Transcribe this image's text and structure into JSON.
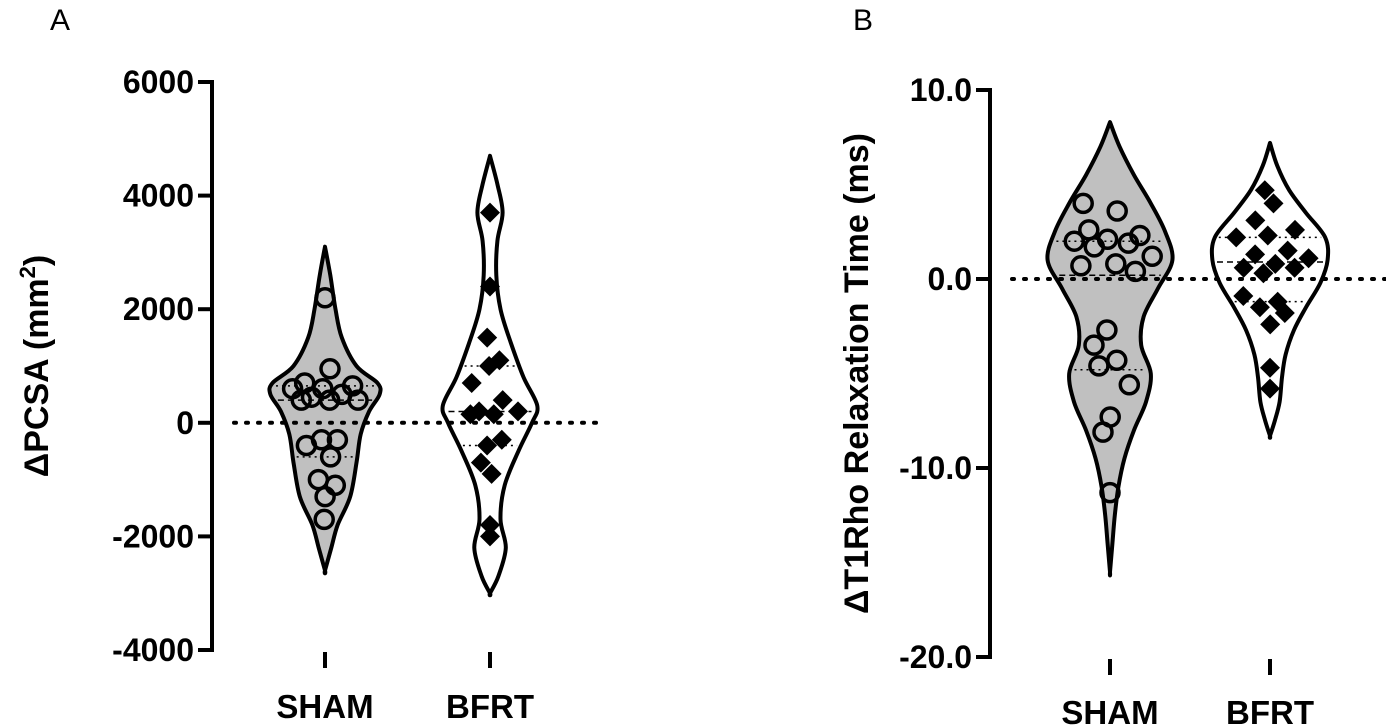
{
  "chart_data": [
    {
      "type": "violin",
      "panel_label": "A",
      "ylabel": "ΔPCSA (mm",
      "ylabel_sup": "2",
      "ylabel_close": ")",
      "ylim": [
        -4000,
        6000
      ],
      "yticks": [
        -4000,
        -2000,
        0,
        2000,
        4000,
        6000
      ],
      "ytick_labels": [
        "-4000",
        "-2000",
        "0",
        "2000",
        "4000",
        "6000"
      ],
      "reference_line": 0,
      "categories": [
        "SHAM",
        "BFRT"
      ],
      "series": [
        {
          "name": "SHAM",
          "marker": "open-circle",
          "fill": "#c0c0c0",
          "values": [
            2200,
            950,
            700,
            650,
            600,
            600,
            500,
            450,
            400,
            400,
            400,
            -300,
            -300,
            -400,
            -600,
            -1000,
            -1100,
            -1300,
            -1700
          ],
          "quartiles": [
            -600,
            400,
            650
          ],
          "violin": {
            "y": [
              3100,
              2600,
              2000,
              1500,
              1000,
              700,
              500,
              200,
              -200,
              -700,
              -1300,
              -1800,
              -2200,
              -2600
            ],
            "w": [
              0,
              0.05,
              0.1,
              0.16,
              0.3,
              0.5,
              0.52,
              0.42,
              0.34,
              0.3,
              0.24,
              0.12,
              0.06,
              0
            ]
          }
        },
        {
          "name": "BFRT",
          "marker": "filled-diamond",
          "fill": "#ffffff",
          "values": [
            3700,
            2400,
            1500,
            1100,
            1000,
            700,
            400,
            200,
            200,
            150,
            150,
            -300,
            -400,
            -700,
            -900,
            -1800,
            -2000
          ],
          "quartiles": [
            -400,
            200,
            1000
          ],
          "violin": {
            "y": [
              4700,
              4200,
              3700,
              3200,
              2600,
              2000,
              1400,
              800,
              300,
              0,
              -500,
              -1100,
              -1700,
              -2200,
              -2700,
              -3000
            ],
            "w": [
              0,
              0.07,
              0.12,
              0.07,
              0.06,
              0.1,
              0.2,
              0.32,
              0.45,
              0.4,
              0.27,
              0.14,
              0.1,
              0.15,
              0.08,
              0
            ]
          }
        }
      ]
    },
    {
      "type": "violin",
      "panel_label": "B",
      "ylabel": "ΔT1Rho Relaxation Time (ms)",
      "ylim": [
        -20,
        10
      ],
      "yticks": [
        -20,
        -10,
        0,
        10
      ],
      "ytick_labels": [
        "-20.0",
        "-10.0",
        "0.0",
        "10.0"
      ],
      "reference_line": 0,
      "categories": [
        "SHAM",
        "BFRT"
      ],
      "series": [
        {
          "name": "SHAM",
          "marker": "open-circle",
          "fill": "#c0c0c0",
          "values": [
            4.0,
            3.6,
            2.6,
            2.3,
            2.1,
            2.0,
            1.9,
            1.7,
            1.2,
            0.8,
            0.7,
            0.4,
            -2.7,
            -3.5,
            -4.3,
            -4.6,
            -5.6,
            -7.3,
            -8.1,
            -11.3
          ],
          "quartiles": [
            -4.8,
            0.2,
            2.0
          ],
          "violin": {
            "y": [
              8.3,
              7.0,
              5.5,
              4.0,
              2.5,
              1.0,
              -0.5,
              -2.0,
              -3.5,
              -5.0,
              -6.5,
              -8.0,
              -9.5,
              -11.0,
              -12.5,
              -14.0,
              -15.5
            ],
            "w": [
              0,
              0.08,
              0.2,
              0.34,
              0.46,
              0.52,
              0.4,
              0.28,
              0.26,
              0.34,
              0.3,
              0.2,
              0.12,
              0.07,
              0.04,
              0.02,
              0
            ]
          }
        },
        {
          "name": "BFRT",
          "marker": "filled-diamond",
          "fill": "#ffffff",
          "values": [
            4.7,
            4.0,
            3.1,
            2.6,
            2.3,
            2.2,
            1.5,
            1.3,
            1.1,
            0.8,
            0.6,
            0.6,
            0.3,
            -0.9,
            -1.2,
            -1.5,
            -1.8,
            -2.4,
            -4.7,
            -5.8
          ],
          "quartiles": [
            -1.2,
            0.9,
            2.2
          ],
          "violin": {
            "y": [
              7.2,
              6.0,
              4.7,
              3.5,
              2.2,
              1.0,
              -0.2,
              -1.5,
              -2.7,
              -4.0,
              -5.2,
              -6.5,
              -7.5,
              -8.3
            ],
            "w": [
              0,
              0.06,
              0.16,
              0.3,
              0.46,
              0.48,
              0.42,
              0.3,
              0.2,
              0.13,
              0.1,
              0.08,
              0.04,
              0
            ]
          }
        }
      ]
    }
  ]
}
